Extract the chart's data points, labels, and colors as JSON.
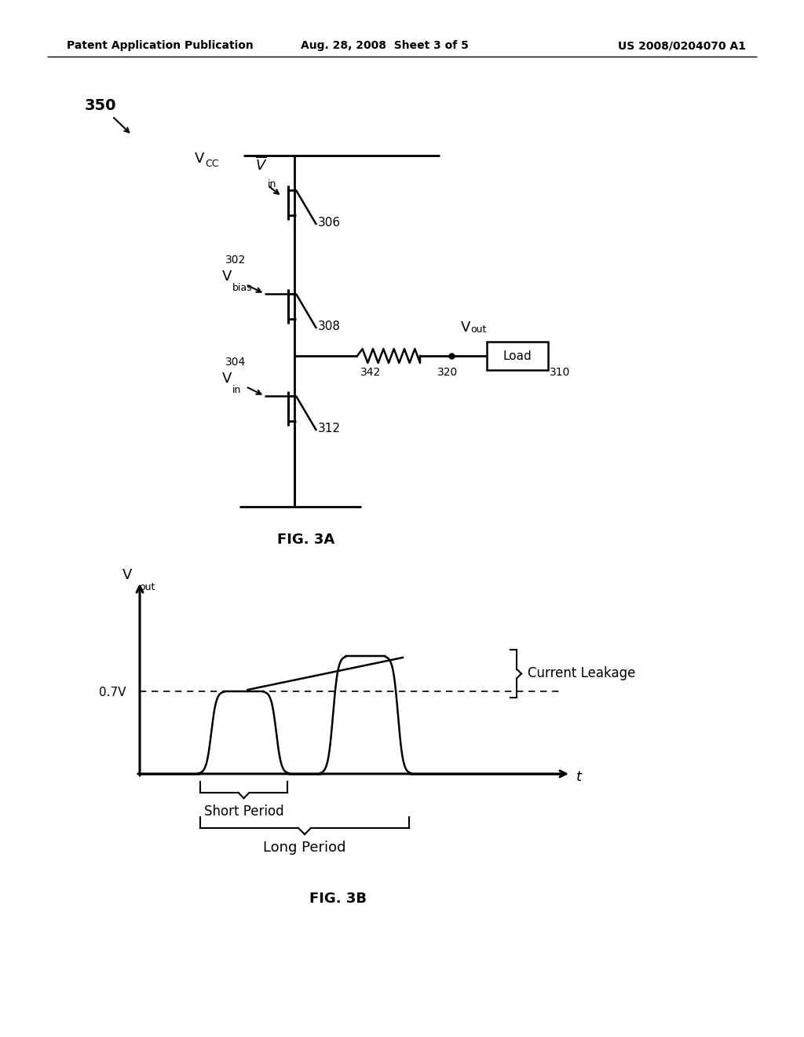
{
  "bg_color": "#ffffff",
  "header_left": "Patent Application Publication",
  "header_center": "Aug. 28, 2008  Sheet 3 of 5",
  "header_right": "US 2008/0204070 A1",
  "fig3a_label": "FIG. 3A",
  "fig3b_label": "FIG. 3B",
  "label_350": "350",
  "label_306": "306",
  "label_308": "308",
  "label_310": "310",
  "label_312": "312",
  "label_320": "320",
  "label_342": "342",
  "label_302": "302",
  "label_304": "304",
  "load_label": "Load",
  "voltage_label": "0.7V",
  "t_label": "t",
  "short_period": "Short Period",
  "long_period": "Long Period",
  "current_leakage": "Current Leakage"
}
